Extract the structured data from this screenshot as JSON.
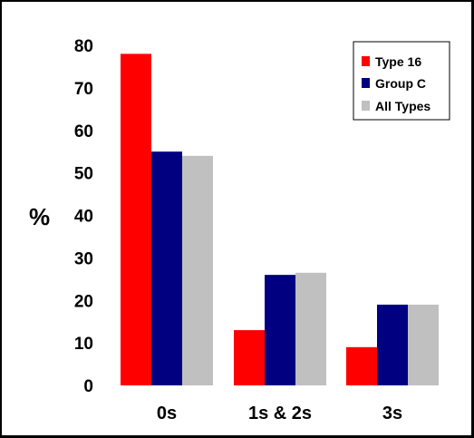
{
  "chart_data": {
    "type": "bar",
    "categories": [
      "0s",
      "1s & 2s",
      "3s"
    ],
    "series": [
      {
        "name": "Type 16",
        "color": "#ff0000",
        "values": [
          78,
          13,
          9
        ]
      },
      {
        "name": "Group C",
        "color": "#000080",
        "values": [
          55,
          26,
          19
        ]
      },
      {
        "name": "All Types",
        "color": "#c0c0c0",
        "values": [
          54,
          26.5,
          19
        ]
      }
    ],
    "ylabel": "%",
    "yticks": [
      "0",
      "10",
      "20",
      "30",
      "40",
      "50",
      "60",
      "70",
      "80"
    ],
    "ylim": [
      0,
      80
    ],
    "legend": "top-right",
    "grid": false
  }
}
